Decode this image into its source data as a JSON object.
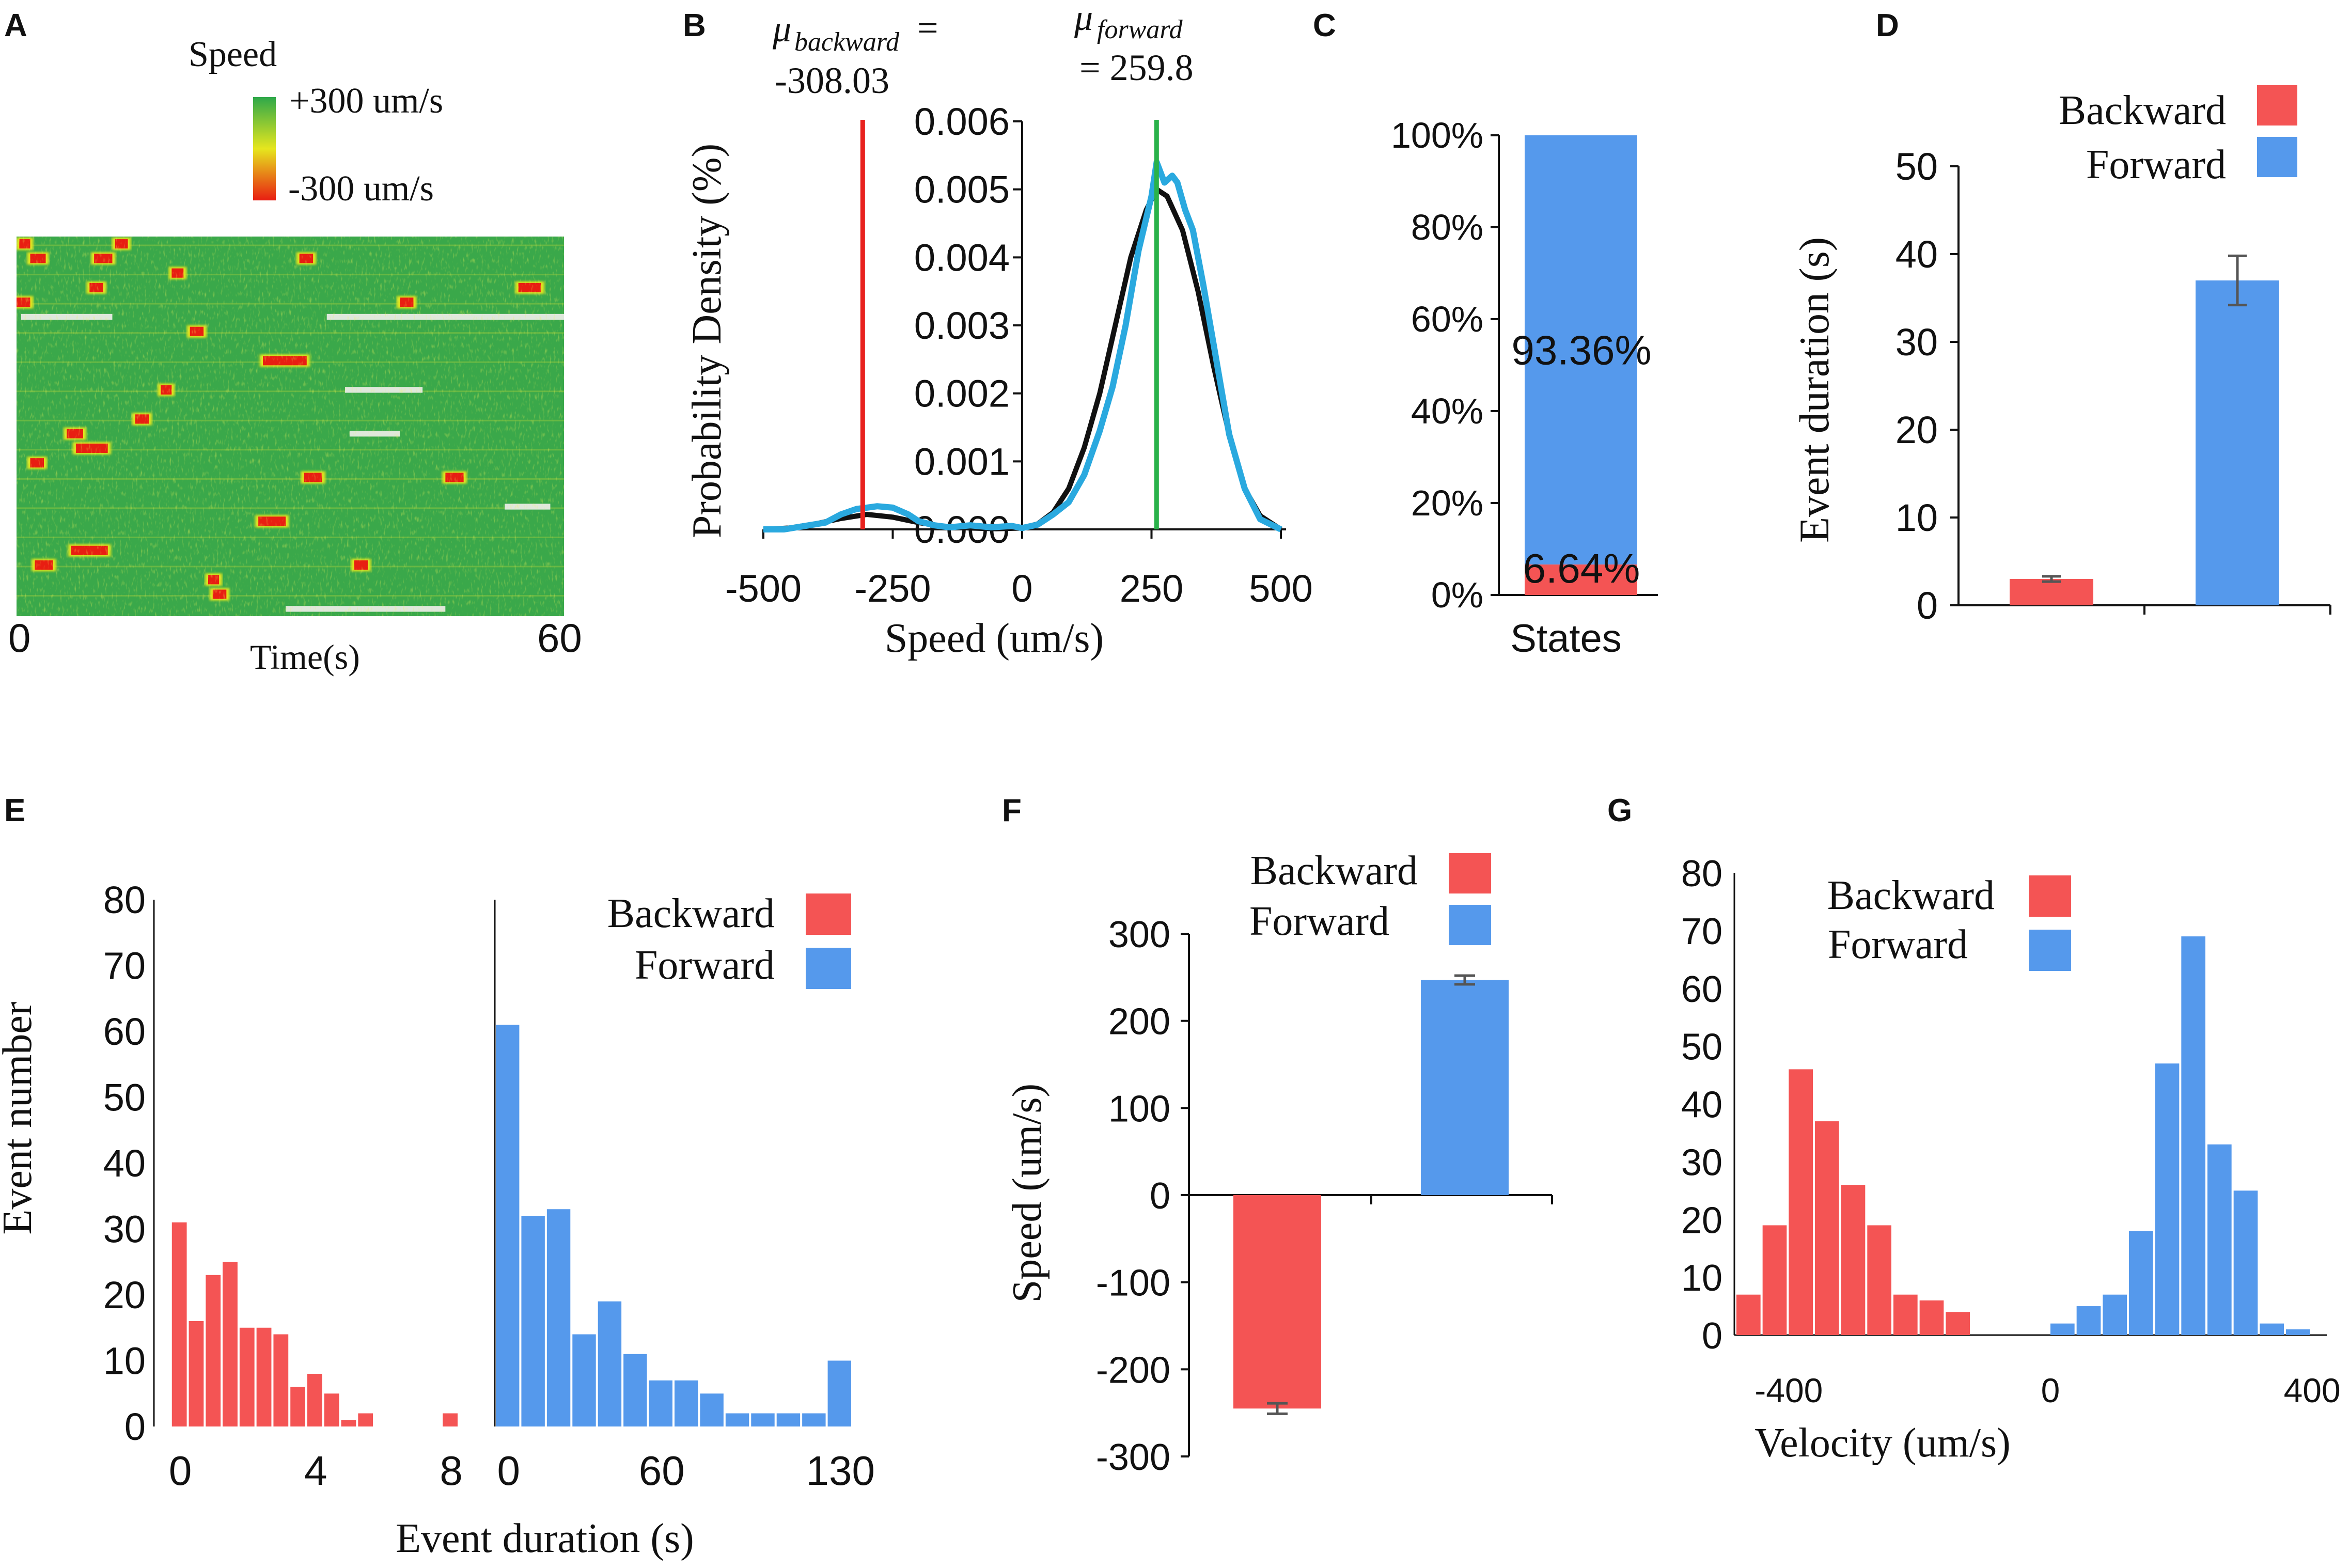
{
  "figure_title": "",
  "colors": {
    "backward": "#f45454",
    "forward": "#5599ec",
    "density_observed": "#2aa9df",
    "density_fit": "#111111",
    "mean_backward_line": "#e8221e",
    "mean_forward_line": "#2ab24a",
    "heat_green": "#38a84a",
    "heat_yellow": "#e6e61e",
    "heat_red": "#e81e12"
  },
  "chart_data": [
    {
      "id": "A",
      "type": "heatmap",
      "panel_label": "A",
      "colorbar_title": "Speed",
      "colorbar_max_label": "+300 um/s",
      "colorbar_min_label": "-300 um/s",
      "xlabel": "Time(s)",
      "x_ticks": [
        "0",
        "60"
      ],
      "xlim": [
        0,
        60
      ],
      "num_tracks": 26,
      "backward_events": [
        {
          "track": 0,
          "start": 0.3,
          "end": 1.5
        },
        {
          "track": 0,
          "start": 10.8,
          "end": 12.2
        },
        {
          "track": 1,
          "start": 1.5,
          "end": 3.2
        },
        {
          "track": 1,
          "start": 8.5,
          "end": 10.5
        },
        {
          "track": 1,
          "start": 31.0,
          "end": 32.5
        },
        {
          "track": 2,
          "start": 17.0,
          "end": 18.3
        },
        {
          "track": 3,
          "start": 8.0,
          "end": 9.5
        },
        {
          "track": 3,
          "start": 55.0,
          "end": 57.5
        },
        {
          "track": 4,
          "start": 0.0,
          "end": 1.5
        },
        {
          "track": 4,
          "start": 42.0,
          "end": 43.5
        },
        {
          "track": 6,
          "start": 19.0,
          "end": 20.5
        },
        {
          "track": 8,
          "start": 27.0,
          "end": 31.8
        },
        {
          "track": 10,
          "start": 15.8,
          "end": 17.0
        },
        {
          "track": 12,
          "start": 13.0,
          "end": 14.5
        },
        {
          "track": 13,
          "start": 5.5,
          "end": 7.3
        },
        {
          "track": 14,
          "start": 6.5,
          "end": 10.0
        },
        {
          "track": 15,
          "start": 1.5,
          "end": 3.0
        },
        {
          "track": 16,
          "start": 31.5,
          "end": 33.5
        },
        {
          "track": 16,
          "start": 47.0,
          "end": 49.0
        },
        {
          "track": 19,
          "start": 26.5,
          "end": 29.5
        },
        {
          "track": 21,
          "start": 6.0,
          "end": 10.0
        },
        {
          "track": 22,
          "start": 2.0,
          "end": 4.0
        },
        {
          "track": 22,
          "start": 37.0,
          "end": 38.5
        },
        {
          "track": 23,
          "start": 21.0,
          "end": 22.2
        },
        {
          "track": 24,
          "start": 21.5,
          "end": 23.0
        }
      ],
      "paused_events": [
        {
          "track": 5,
          "start": 0.5,
          "end": 10.5
        },
        {
          "track": 5,
          "start": 34.0,
          "end": 60.0
        },
        {
          "track": 10,
          "start": 36.0,
          "end": 44.5
        },
        {
          "track": 13,
          "start": 36.5,
          "end": 42.0
        },
        {
          "track": 18,
          "start": 53.5,
          "end": 58.5
        },
        {
          "track": 25,
          "start": 29.5,
          "end": 47.0
        }
      ]
    },
    {
      "id": "B",
      "type": "line",
      "panel_label": "B",
      "xlabel": "Speed (um/s)",
      "ylabel": "Probability Density (%)",
      "x_ticks": [
        -500,
        -250,
        0,
        250,
        500
      ],
      "x_tick_labels": [
        "-500",
        "-250",
        "0",
        "250",
        "500"
      ],
      "y_ticks": [
        0,
        0.001,
        0.002,
        0.003,
        0.004,
        0.005,
        0.006
      ],
      "y_tick_labels": [
        "0.000",
        "0.001",
        "0.002",
        "0.003",
        "0.004",
        "0.005",
        "0.006"
      ],
      "xlim": [
        -500,
        500
      ],
      "ylim": [
        0,
        0.006
      ],
      "mu_backward_label": "μbackward =",
      "mu_backward_symbol": "μ",
      "mu_backward_sub": "backward",
      "mu_backward_eq": "=",
      "mu_backward_value_label": "-308.03",
      "mu_backward": -308.03,
      "mu_forward_symbol": "μ",
      "mu_forward_sub": "forward",
      "mu_forward_value_label": "= 259.8",
      "mu_forward": 259.8,
      "series": [
        {
          "name": "observed",
          "x": [
            -500,
            -460,
            -420,
            -380,
            -350,
            -320,
            -300,
            -280,
            -250,
            -220,
            -200,
            -170,
            -140,
            -100,
            -60,
            -20,
            0,
            30,
            60,
            90,
            120,
            150,
            175,
            200,
            225,
            250,
            260,
            275,
            290,
            300,
            315,
            330,
            350,
            375,
            400,
            430,
            460,
            500
          ],
          "y": [
            0.0,
            0.0,
            5e-05,
            0.0001,
            0.00022,
            0.0003,
            0.00032,
            0.00034,
            0.00032,
            0.00022,
            0.00012,
            6e-05,
            3e-05,
            6e-05,
            3e-05,
            5e-05,
            2e-05,
            7e-05,
            0.00022,
            0.0004,
            0.0008,
            0.00145,
            0.0021,
            0.003,
            0.0041,
            0.0049,
            0.0054,
            0.0051,
            0.0052,
            0.0051,
            0.0047,
            0.0044,
            0.0036,
            0.0025,
            0.0014,
            0.0006,
            0.00015,
            0.0
          ]
        },
        {
          "name": "fit",
          "x": [
            -500,
            -450,
            -400,
            -350,
            -300,
            -250,
            -200,
            -150,
            -100,
            -50,
            0,
            30,
            60,
            90,
            120,
            150,
            180,
            210,
            240,
            260,
            280,
            310,
            340,
            370,
            400,
            430,
            460,
            500
          ],
          "y": [
            0.0,
            2e-05,
            8e-05,
            0.00016,
            0.00022,
            0.00018,
            0.0001,
            4e-05,
            2e-05,
            1e-05,
            2e-05,
            8e-05,
            0.00025,
            0.0006,
            0.0012,
            0.002,
            0.003,
            0.004,
            0.0047,
            0.005,
            0.0049,
            0.0044,
            0.0035,
            0.0024,
            0.0014,
            0.0006,
            0.0002,
            0.0
          ]
        }
      ]
    },
    {
      "id": "C",
      "type": "bar",
      "panel_label": "C",
      "stacked": true,
      "categories": [
        "States"
      ],
      "series": [
        {
          "name": "Backward",
          "values": [
            6.64
          ],
          "label": "6.64%"
        },
        {
          "name": "Forward",
          "values": [
            93.36
          ],
          "label": "93.36%"
        }
      ],
      "y_ticks": [
        0,
        20,
        40,
        60,
        80,
        100
      ],
      "y_tick_labels": [
        "0%",
        "20%",
        "40%",
        "60%",
        "80%",
        "100%"
      ],
      "ylim": [
        0,
        100
      ],
      "xlabel": "States"
    },
    {
      "id": "D",
      "type": "bar",
      "panel_label": "D",
      "categories": [
        "Backward",
        "Forward"
      ],
      "values": [
        3.0,
        37.0
      ],
      "errors": [
        0.3,
        2.8
      ],
      "ylabel": "Event duration (s)",
      "y_ticks": [
        0,
        10,
        20,
        30,
        40,
        50
      ],
      "ylim": [
        0,
        50
      ],
      "legend": [
        "Backward",
        "Forward"
      ]
    },
    {
      "id": "E1",
      "type": "bar",
      "panel_label": "E",
      "series_name": "Backward",
      "bin_width": 0.5,
      "bin_starts": [
        -0.5,
        0,
        0.5,
        1,
        1.5,
        2,
        2.5,
        3,
        3.5,
        4,
        4.5,
        5,
        5.5,
        6,
        6.5,
        7,
        7.5,
        8
      ],
      "values": [
        0,
        31,
        16,
        23,
        25,
        15,
        15,
        14,
        6,
        8,
        5,
        1,
        2,
        0,
        0,
        0,
        0,
        2
      ],
      "xlim": [
        -0.5,
        8.5
      ],
      "ylim": [
        0,
        80
      ],
      "x_ticks": [
        0,
        4,
        8
      ],
      "y_ticks": [
        0,
        10,
        20,
        30,
        40,
        50,
        60,
        70,
        80
      ],
      "ylabel": "Event number"
    },
    {
      "id": "E2",
      "type": "bar",
      "series_name": "Forward",
      "bin_width": 10,
      "bin_starts": [
        -5,
        5,
        15,
        25,
        35,
        45,
        55,
        65,
        75,
        85,
        95,
        105,
        115,
        125
      ],
      "values": [
        61,
        32,
        33,
        14,
        19,
        11,
        7,
        7,
        5,
        2,
        2,
        2,
        2,
        10
      ],
      "xlim": [
        -5,
        135
      ],
      "ylim": [
        0,
        80
      ],
      "x_ticks": [
        0,
        60,
        130
      ],
      "xlabel": "Event duration (s)",
      "legend": [
        "Backward",
        "Forward"
      ]
    },
    {
      "id": "F",
      "type": "bar",
      "panel_label": "F",
      "categories": [
        "Backward",
        "Forward"
      ],
      "values": [
        -245,
        247
      ],
      "errors": [
        6,
        5
      ],
      "ylabel": "Speed (um/s)",
      "y_ticks": [
        -300,
        -200,
        -100,
        0,
        100,
        200,
        300
      ],
      "ylim": [
        -300,
        300
      ],
      "legend": [
        "Backward",
        "Forward"
      ]
    },
    {
      "id": "G",
      "type": "bar",
      "panel_label": "G",
      "bin_width": 40,
      "backward": {
        "bin_starts": [
          -480,
          -440,
          -400,
          -360,
          -320,
          -280,
          -240,
          -200,
          -160
        ],
        "values": [
          7,
          19,
          46,
          37,
          26,
          19,
          7,
          6,
          4
        ]
      },
      "forward": {
        "bin_starts": [
          0,
          40,
          80,
          120,
          160,
          200,
          240,
          280,
          320,
          360,
          400
        ],
        "values": [
          2,
          5,
          7,
          18,
          47,
          69,
          33,
          25,
          2,
          1,
          0
        ]
      },
      "xlim": [
        -480,
        420
      ],
      "ylim": [
        0,
        80
      ],
      "x_ticks": [
        -400,
        0,
        400
      ],
      "y_ticks": [
        0,
        10,
        20,
        30,
        40,
        50,
        60,
        70,
        80
      ],
      "xlabel": "Velocity (um/s)",
      "legend": [
        "Backward",
        "Forward"
      ]
    }
  ]
}
